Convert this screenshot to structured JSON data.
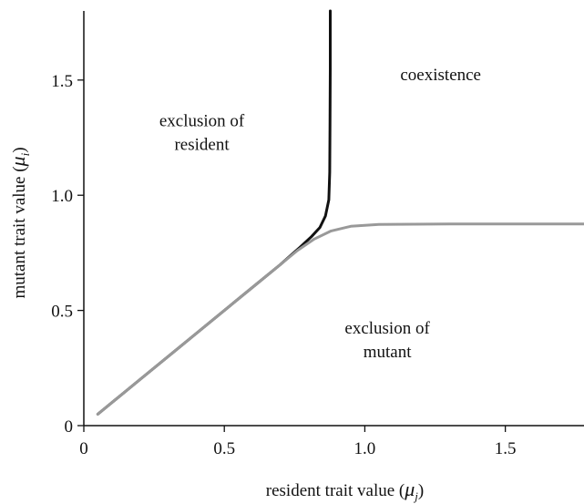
{
  "chart_data": {
    "type": "line",
    "xlabel": "resident trait value (μ_j)",
    "ylabel": "mutant trait value (μ_i)",
    "xlim": [
      0,
      1.78
    ],
    "ylim": [
      0,
      1.8
    ],
    "x_ticks": [
      "0",
      "0.5",
      "1.0",
      "1.5"
    ],
    "x_tick_values": [
      0,
      0.5,
      1.0,
      1.5
    ],
    "y_ticks": [
      "0",
      "0.5",
      "1.0",
      "1.5"
    ],
    "y_tick_values": [
      0,
      0.5,
      1.0,
      1.5
    ],
    "grid": false,
    "series": [
      {
        "color": "#111111",
        "points": [
          [
            0.05,
            0.05
          ],
          [
            0.2,
            0.2
          ],
          [
            0.4,
            0.4
          ],
          [
            0.6,
            0.6
          ],
          [
            0.7,
            0.7
          ],
          [
            0.77,
            0.775
          ],
          [
            0.81,
            0.82
          ],
          [
            0.84,
            0.86
          ],
          [
            0.86,
            0.91
          ],
          [
            0.872,
            0.98
          ],
          [
            0.875,
            1.1
          ],
          [
            0.876,
            1.3
          ],
          [
            0.877,
            1.55
          ],
          [
            0.877,
            1.8
          ]
        ]
      },
      {
        "color": "#999999",
        "points": [
          [
            0.05,
            0.05
          ],
          [
            0.2,
            0.2
          ],
          [
            0.4,
            0.4
          ],
          [
            0.6,
            0.6
          ],
          [
            0.7,
            0.7
          ],
          [
            0.76,
            0.76
          ],
          [
            0.82,
            0.81
          ],
          [
            0.88,
            0.845
          ],
          [
            0.95,
            0.865
          ],
          [
            1.05,
            0.873
          ],
          [
            1.3,
            0.875
          ],
          [
            1.6,
            0.875
          ],
          [
            1.78,
            0.875
          ]
        ]
      }
    ],
    "annotations": [
      {
        "lines": [
          "coexistence"
        ],
        "x": 1.27,
        "y": 1.5
      },
      {
        "lines": [
          "exclusion of",
          "resident"
        ],
        "x": 0.42,
        "y": 1.3
      },
      {
        "lines": [
          "exclusion of",
          "mutant"
        ],
        "x": 1.08,
        "y": 0.4
      }
    ]
  }
}
